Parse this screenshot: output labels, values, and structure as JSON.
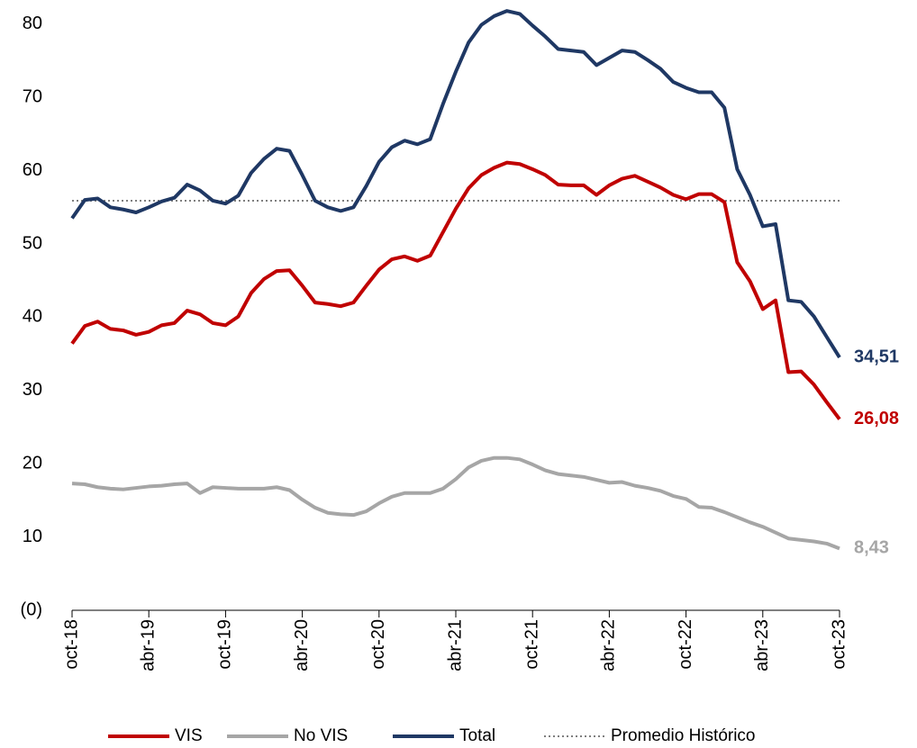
{
  "chart_data": {
    "type": "line",
    "categories": [
      "oct-18",
      null,
      null,
      null,
      null,
      null,
      "abr-19",
      null,
      null,
      null,
      null,
      null,
      "oct-19",
      null,
      null,
      null,
      null,
      null,
      "abr-20",
      null,
      null,
      null,
      null,
      null,
      "oct-20",
      null,
      null,
      null,
      null,
      null,
      "abr-21",
      null,
      null,
      null,
      null,
      null,
      "oct-21",
      null,
      null,
      null,
      null,
      null,
      "abr-22",
      null,
      null,
      null,
      null,
      null,
      "oct-22",
      null,
      null,
      null,
      null,
      null,
      "abr-23",
      null,
      null,
      null,
      null,
      null,
      "oct-23"
    ],
    "series": [
      {
        "name": "VIS",
        "color": "#c00000",
        "values": [
          36.4,
          38.8,
          39.4,
          38.4,
          38.2,
          37.6,
          38.0,
          38.9,
          39.2,
          40.9,
          40.4,
          39.2,
          38.9,
          40.1,
          43.3,
          45.2,
          46.3,
          46.4,
          44.3,
          42.0,
          41.8,
          41.5,
          42.0,
          44.3,
          46.5,
          47.9,
          48.3,
          47.7,
          48.4,
          51.6,
          54.8,
          57.6,
          59.4,
          60.4,
          61.1,
          60.9,
          60.2,
          59.4,
          58.1,
          58.0,
          58.0,
          56.7,
          58.0,
          58.9,
          59.3,
          58.5,
          57.7,
          56.7,
          56.1,
          56.8,
          56.8,
          55.7,
          47.5,
          44.9,
          41.1,
          42.3,
          32.5,
          32.6,
          30.8,
          28.4,
          26.08
        ],
        "value_labels": [
          null,
          null,
          null,
          null,
          null,
          null,
          null,
          null,
          null,
          null,
          null,
          null,
          null,
          null,
          null,
          null,
          null,
          null,
          null,
          null,
          null,
          null,
          null,
          null,
          null,
          null,
          null,
          null,
          null,
          null,
          null,
          null,
          null,
          null,
          null,
          null,
          null,
          null,
          null,
          null,
          null,
          null,
          null,
          null,
          null,
          null,
          null,
          null,
          null,
          null,
          null,
          null,
          null,
          null,
          null,
          null,
          null,
          null,
          null,
          null,
          "26,08"
        ]
      },
      {
        "name": "No VIS",
        "color": "#a6a6a6",
        "values": [
          17.3,
          17.2,
          16.8,
          16.6,
          16.5,
          16.7,
          16.9,
          17.0,
          17.2,
          17.3,
          16.0,
          16.8,
          16.7,
          16.6,
          16.6,
          16.6,
          16.8,
          16.4,
          15.1,
          14.0,
          13.3,
          13.1,
          13.0,
          13.5,
          14.6,
          15.5,
          16.0,
          16.0,
          16.0,
          16.6,
          17.9,
          19.5,
          20.4,
          20.8,
          20.8,
          20.6,
          19.9,
          19.1,
          18.6,
          18.4,
          18.2,
          17.8,
          17.4,
          17.5,
          17.0,
          16.7,
          16.3,
          15.6,
          15.2,
          14.1,
          14.0,
          13.4,
          12.7,
          12.0,
          11.4,
          10.6,
          9.8,
          9.6,
          9.4,
          9.1,
          8.43
        ],
        "value_labels": [
          null,
          null,
          null,
          null,
          null,
          null,
          null,
          null,
          null,
          null,
          null,
          null,
          null,
          null,
          null,
          null,
          null,
          null,
          null,
          null,
          null,
          null,
          null,
          null,
          null,
          null,
          null,
          null,
          null,
          null,
          null,
          null,
          null,
          null,
          null,
          null,
          null,
          null,
          null,
          null,
          null,
          null,
          null,
          null,
          null,
          null,
          null,
          null,
          null,
          null,
          null,
          null,
          null,
          null,
          null,
          null,
          null,
          null,
          null,
          null,
          "8,43"
        ]
      },
      {
        "name": "Total",
        "color": "#1f3864",
        "values": [
          53.5,
          56.0,
          56.2,
          55.0,
          54.7,
          54.3,
          55.0,
          55.8,
          56.3,
          58.1,
          57.3,
          55.9,
          55.5,
          56.6,
          59.7,
          61.6,
          63.0,
          62.7,
          59.4,
          55.9,
          55.0,
          54.5,
          55.0,
          57.9,
          61.2,
          63.2,
          64.1,
          63.6,
          64.3,
          69.1,
          73.5,
          77.5,
          79.9,
          81.1,
          81.8,
          81.4,
          79.8,
          78.3,
          76.6,
          76.4,
          76.2,
          74.4,
          75.4,
          76.4,
          76.2,
          75.1,
          73.9,
          72.1,
          71.3,
          70.7,
          70.7,
          68.6,
          60.2,
          56.7,
          52.4,
          52.7,
          42.3,
          42.1,
          40.1,
          37.3,
          34.51
        ],
        "value_labels": [
          null,
          null,
          null,
          null,
          null,
          null,
          null,
          null,
          null,
          null,
          null,
          null,
          null,
          null,
          null,
          null,
          null,
          null,
          null,
          null,
          null,
          null,
          null,
          null,
          null,
          null,
          null,
          null,
          null,
          null,
          null,
          null,
          null,
          null,
          null,
          null,
          null,
          null,
          null,
          null,
          null,
          null,
          null,
          null,
          null,
          null,
          null,
          null,
          null,
          null,
          null,
          null,
          null,
          null,
          null,
          null,
          null,
          null,
          null,
          null,
          "34,51"
        ]
      }
    ],
    "reference_line": {
      "name": "Promedio Histórico",
      "value": 55.9,
      "color": "#7f7f7f",
      "style": "dotted"
    },
    "ylim": [
      0,
      82
    ],
    "yticks": [
      {
        "value": 0,
        "label": "(0)"
      },
      10,
      20,
      30,
      40,
      50,
      60,
      70,
      80
    ],
    "grid": false,
    "legend": "bottom"
  }
}
